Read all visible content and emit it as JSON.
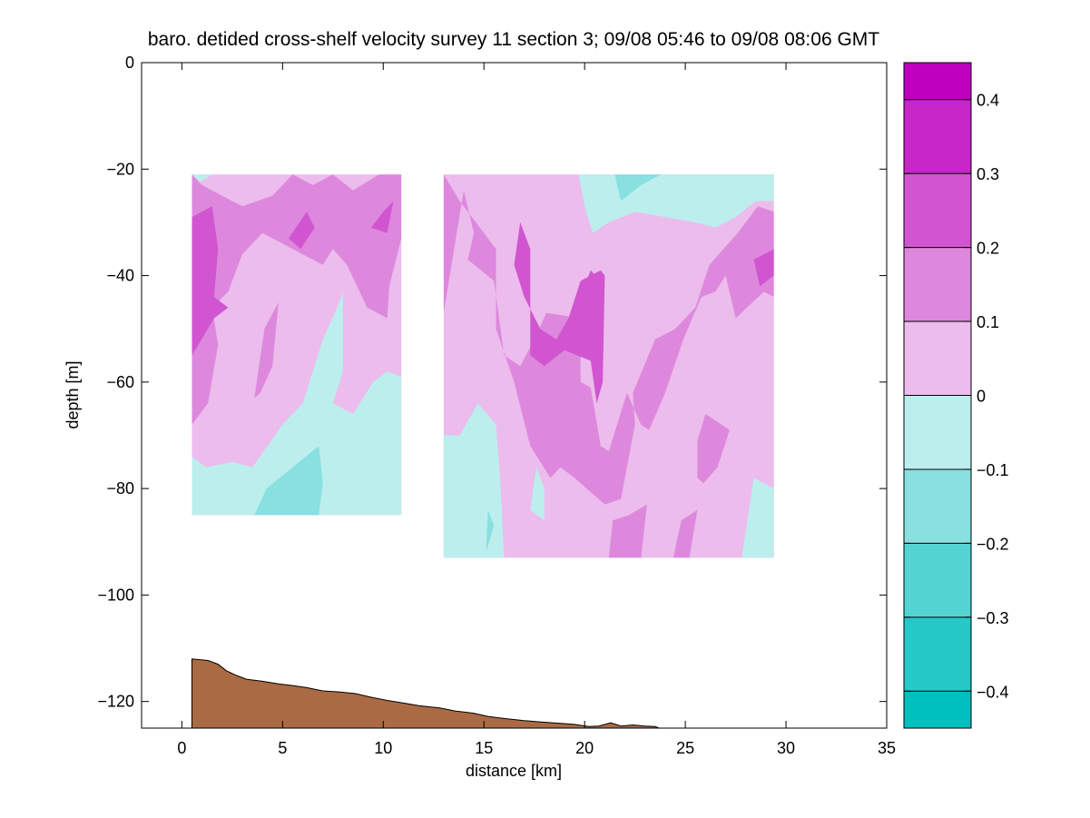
{
  "chart_data": {
    "type": "contour",
    "title": "baro. detided cross-shelf velocity survey 11 section 3; 09/08 05:46 to 09/08 08:06 GMT",
    "xlabel": "distance [km]",
    "ylabel": "depth [m]",
    "xlim": [
      -2,
      35
    ],
    "ylim": [
      -125,
      0
    ],
    "xticks": [
      0,
      5,
      10,
      15,
      20,
      25,
      30,
      35
    ],
    "yticks": [
      -120,
      -100,
      -80,
      -60,
      -40,
      -20,
      0
    ],
    "colorbar": {
      "levels": [
        -0.45,
        -0.4,
        -0.3,
        -0.2,
        -0.1,
        0,
        0.1,
        0.2,
        0.3,
        0.4,
        0.45
      ],
      "ticks": [
        -0.4,
        -0.3,
        -0.2,
        -0.1,
        0,
        0.1,
        0.2,
        0.3,
        0.4
      ],
      "colors": [
        "#00BFBF",
        "#26C8C8",
        "#55D4D4",
        "#88E0E0",
        "#BDEEEE",
        "#ECBCEC",
        "#DD88DD",
        "#D155D1",
        "#C826C8",
        "#BF00BF"
      ]
    },
    "panels": [
      {
        "name": "left",
        "x": [
          0.5,
          10.9
        ],
        "y": [
          -21,
          -85
        ],
        "background_level": "0 to 0.1",
        "regions": [
          {
            "level": "-0.1 to 0",
            "polygon": [
              [
                0.5,
                -85
              ],
              [
                0.5,
                -74
              ],
              [
                1.2,
                -76
              ],
              [
                2.5,
                -75
              ],
              [
                3.5,
                -76
              ],
              [
                5,
                -68
              ],
              [
                6,
                -64
              ],
              [
                6.5,
                -58
              ],
              [
                7,
                -52
              ],
              [
                7.6,
                -47
              ],
              [
                8,
                -43
              ],
              [
                8,
                -58
              ],
              [
                7.5,
                -64
              ],
              [
                8.5,
                -66
              ],
              [
                9.5,
                -60
              ],
              [
                10.2,
                -58
              ],
              [
                10.9,
                -59
              ],
              [
                10.9,
                -85
              ]
            ]
          },
          {
            "level": "-0.2 to -0.1",
            "polygon": [
              [
                3.6,
                -85
              ],
              [
                4.2,
                -80
              ],
              [
                5.5,
                -76
              ],
              [
                6.8,
                -72
              ],
              [
                7,
                -79
              ],
              [
                6.8,
                -85
              ]
            ]
          },
          {
            "level": "-0.1 to 0",
            "polygon": [
              [
                0.5,
                -21
              ],
              [
                1.5,
                -21
              ],
              [
                0.9,
                -22.5
              ]
            ]
          },
          {
            "level": "0.1 to 0.2",
            "polygon": [
              [
                0.5,
                -21
              ],
              [
                0.5,
                -68
              ],
              [
                1.3,
                -64
              ],
              [
                1.8,
                -53
              ],
              [
                1.5,
                -46
              ],
              [
                2.3,
                -43
              ],
              [
                3.0,
                -36
              ],
              [
                4.0,
                -32
              ],
              [
                5.0,
                -34
              ],
              [
                6.0,
                -36
              ],
              [
                7.0,
                -38
              ],
              [
                7.5,
                -35
              ],
              [
                8.2,
                -38
              ],
              [
                9.2,
                -46
              ],
              [
                10.2,
                -48
              ],
              [
                10.3,
                -42
              ],
              [
                10.9,
                -33
              ],
              [
                10.9,
                -21
              ],
              [
                9.8,
                -21
              ],
              [
                8.5,
                -24
              ],
              [
                7.5,
                -21
              ],
              [
                6.5,
                -23
              ],
              [
                5.5,
                -21
              ],
              [
                4.5,
                -25
              ],
              [
                3,
                -27
              ],
              [
                2,
                -25
              ],
              [
                1.0,
                -23
              ]
            ]
          },
          {
            "level": "0.1 to 0.2",
            "polygon": [
              [
                3.6,
                -63
              ],
              [
                4.1,
                -50
              ],
              [
                4.8,
                -45
              ],
              [
                4.5,
                -57
              ],
              [
                3.9,
                -62
              ]
            ]
          },
          {
            "level": "0.2 to 0.3",
            "polygon": [
              [
                0.5,
                -29
              ],
              [
                1.5,
                -27
              ],
              [
                1.8,
                -35
              ],
              [
                1.6,
                -44
              ],
              [
                2.3,
                -46
              ],
              [
                1.6,
                -48
              ],
              [
                0.5,
                -55
              ]
            ]
          },
          {
            "level": "0.2 to 0.3",
            "polygon": [
              [
                5.3,
                -33
              ],
              [
                6.2,
                -28
              ],
              [
                6.6,
                -31
              ],
              [
                5.9,
                -35
              ]
            ]
          },
          {
            "level": "0.2 to 0.3",
            "polygon": [
              [
                9.4,
                -31
              ],
              [
                10.0,
                -28
              ],
              [
                10.5,
                -26
              ],
              [
                10.2,
                -32
              ]
            ]
          }
        ]
      },
      {
        "name": "right",
        "x": [
          13.0,
          29.4
        ],
        "y": [
          -21,
          -93
        ],
        "background_level": "0 to 0.1",
        "regions": [
          {
            "level": "-0.1 to 0",
            "polygon": [
              [
                19.7,
                -21
              ],
              [
                29.4,
                -21
              ],
              [
                29.4,
                -26
              ],
              [
                28.5,
                -26
              ],
              [
                27.5,
                -29
              ],
              [
                26.5,
                -31
              ],
              [
                25.5,
                -30
              ],
              [
                24,
                -29
              ],
              [
                22.5,
                -28
              ],
              [
                21.2,
                -30
              ],
              [
                20.4,
                -32
              ],
              [
                20.0,
                -27
              ]
            ]
          },
          {
            "level": "-0.2 to -0.1",
            "polygon": [
              [
                21.5,
                -21
              ],
              [
                23.8,
                -21
              ],
              [
                22.8,
                -23
              ],
              [
                21.8,
                -26
              ]
            ]
          },
          {
            "level": "-0.1 to 0",
            "polygon": [
              [
                13,
                -93
              ],
              [
                13,
                -70
              ],
              [
                13.8,
                -70
              ],
              [
                14.7,
                -64
              ],
              [
                15.6,
                -68
              ],
              [
                15.8,
                -78
              ],
              [
                16,
                -93
              ]
            ]
          },
          {
            "level": "-0.1 to 0",
            "polygon": [
              [
                17.3,
                -84
              ],
              [
                17.6,
                -76
              ],
              [
                18,
                -80
              ],
              [
                18,
                -86
              ]
            ]
          },
          {
            "level": "-0.1 to 0",
            "polygon": [
              [
                27.8,
                -93
              ],
              [
                28.4,
                -78
              ],
              [
                29.4,
                -80
              ],
              [
                29.4,
                -93
              ]
            ]
          },
          {
            "level": "-0.2 to -0.1",
            "polygon": [
              [
                15.1,
                -92
              ],
              [
                15.2,
                -84
              ],
              [
                15.5,
                -87
              ]
            ]
          },
          {
            "level": "0.1 to 0.2",
            "polygon": [
              [
                13,
                -47
              ],
              [
                13,
                -21
              ],
              [
                13.8,
                -26
              ],
              [
                15.6,
                -35
              ],
              [
                15.6,
                -50
              ],
              [
                16.5,
                -60
              ],
              [
                17.3,
                -72
              ],
              [
                18.3,
                -78
              ],
              [
                18.8,
                -76
              ],
              [
                19.5,
                -78
              ],
              [
                21,
                -83
              ],
              [
                21.8,
                -82
              ],
              [
                22.5,
                -68
              ],
              [
                22.4,
                -62
              ],
              [
                23.5,
                -52
              ],
              [
                24.5,
                -50
              ],
              [
                25.5,
                -46
              ],
              [
                26.2,
                -38
              ],
              [
                27.6,
                -32
              ],
              [
                28.6,
                -27
              ],
              [
                29.4,
                -28
              ],
              [
                29.4,
                -44
              ],
              [
                28.9,
                -43
              ],
              [
                27.5,
                -48
              ],
              [
                27,
                -40
              ],
              [
                26.5,
                -43
              ],
              [
                25.8,
                -44
              ],
              [
                24.9,
                -52
              ],
              [
                24,
                -62
              ],
              [
                23.2,
                -69
              ],
              [
                22.8,
                -68
              ],
              [
                22.1,
                -62
              ],
              [
                21.2,
                -73
              ],
              [
                20.8,
                -72
              ],
              [
                20.3,
                -61
              ],
              [
                19.8,
                -60
              ],
              [
                19.8,
                -48
              ],
              [
                18.1,
                -47
              ],
              [
                17.5,
                -52
              ],
              [
                16.8,
                -57
              ],
              [
                16.0,
                -55
              ],
              [
                15.5,
                -41
              ],
              [
                14.2,
                -37
              ],
              [
                14.5,
                -32
              ],
              [
                14.0,
                -24
              ]
            ]
          },
          {
            "level": "0.1 to 0.2",
            "polygon": [
              [
                21.2,
                -93
              ],
              [
                21.4,
                -86
              ],
              [
                22.2,
                -85
              ],
              [
                23.1,
                -83
              ],
              [
                22.8,
                -93
              ]
            ]
          },
          {
            "level": "0.1 to 0.2",
            "polygon": [
              [
                24.4,
                -93
              ],
              [
                24.8,
                -86
              ],
              [
                25.6,
                -84
              ],
              [
                25.2,
                -93
              ]
            ]
          },
          {
            "level": "0.1 to 0.2",
            "polygon": [
              [
                25.6,
                -78
              ],
              [
                25.6,
                -71
              ],
              [
                26.0,
                -66
              ],
              [
                27.2,
                -69
              ],
              [
                26.6,
                -76
              ],
              [
                25.9,
                -79
              ]
            ]
          },
          {
            "level": "0.2 to 0.3",
            "polygon": [
              [
                16.5,
                -38
              ],
              [
                16.8,
                -30
              ],
              [
                17.3,
                -35
              ],
              [
                17.3,
                -55
              ],
              [
                18.0,
                -57
              ],
              [
                19.0,
                -54
              ],
              [
                20.3,
                -56
              ],
              [
                20.6,
                -64
              ],
              [
                20.9,
                -60
              ],
              [
                21.0,
                -40
              ],
              [
                20.8,
                -39
              ],
              [
                19.8,
                -41
              ],
              [
                19.2,
                -48
              ],
              [
                18.6,
                -52
              ],
              [
                17.8,
                -50
              ],
              [
                17.0,
                -44
              ]
            ]
          },
          {
            "level": "0.2 to 0.3",
            "polygon": [
              [
                28.4,
                -37
              ],
              [
                29.4,
                -35
              ],
              [
                29.4,
                -40
              ],
              [
                28.7,
                -42
              ]
            ]
          },
          {
            "level": "0.2 to 0.3",
            "polygon": [
              [
                19.9,
                -43
              ],
              [
                20.3,
                -39
              ],
              [
                20.8,
                -41
              ]
            ]
          }
        ]
      }
    ],
    "bottom_profile": {
      "color": "#AA6A44",
      "points": [
        [
          0.5,
          -125
        ],
        [
          0.5,
          -112
        ],
        [
          1.3,
          -112.3
        ],
        [
          1.8,
          -113
        ],
        [
          2.2,
          -114.2
        ],
        [
          2.7,
          -115.1
        ],
        [
          3.2,
          -115.8
        ],
        [
          4,
          -116.2
        ],
        [
          4.8,
          -116.7
        ],
        [
          5.5,
          -117
        ],
        [
          6.2,
          -117.4
        ],
        [
          7,
          -118
        ],
        [
          7.8,
          -118.2
        ],
        [
          8.6,
          -118.5
        ],
        [
          9.4,
          -119.2
        ],
        [
          10.2,
          -119.8
        ],
        [
          11,
          -120.3
        ],
        [
          11.8,
          -120.8
        ],
        [
          12.8,
          -121.2
        ],
        [
          13.6,
          -121.8
        ],
        [
          14.5,
          -122.2
        ],
        [
          15.2,
          -122.8
        ],
        [
          16,
          -123.2
        ],
        [
          17,
          -123.6
        ],
        [
          18,
          -123.9
        ],
        [
          18.8,
          -124.1
        ],
        [
          19.5,
          -124.3
        ],
        [
          20.2,
          -124.7
        ],
        [
          20.7,
          -124.6
        ],
        [
          21.3,
          -124
        ],
        [
          21.8,
          -124.6
        ],
        [
          22.4,
          -124.4
        ],
        [
          23,
          -124.6
        ],
        [
          23.5,
          -124.7
        ],
        [
          23.7,
          -125
        ]
      ]
    }
  }
}
